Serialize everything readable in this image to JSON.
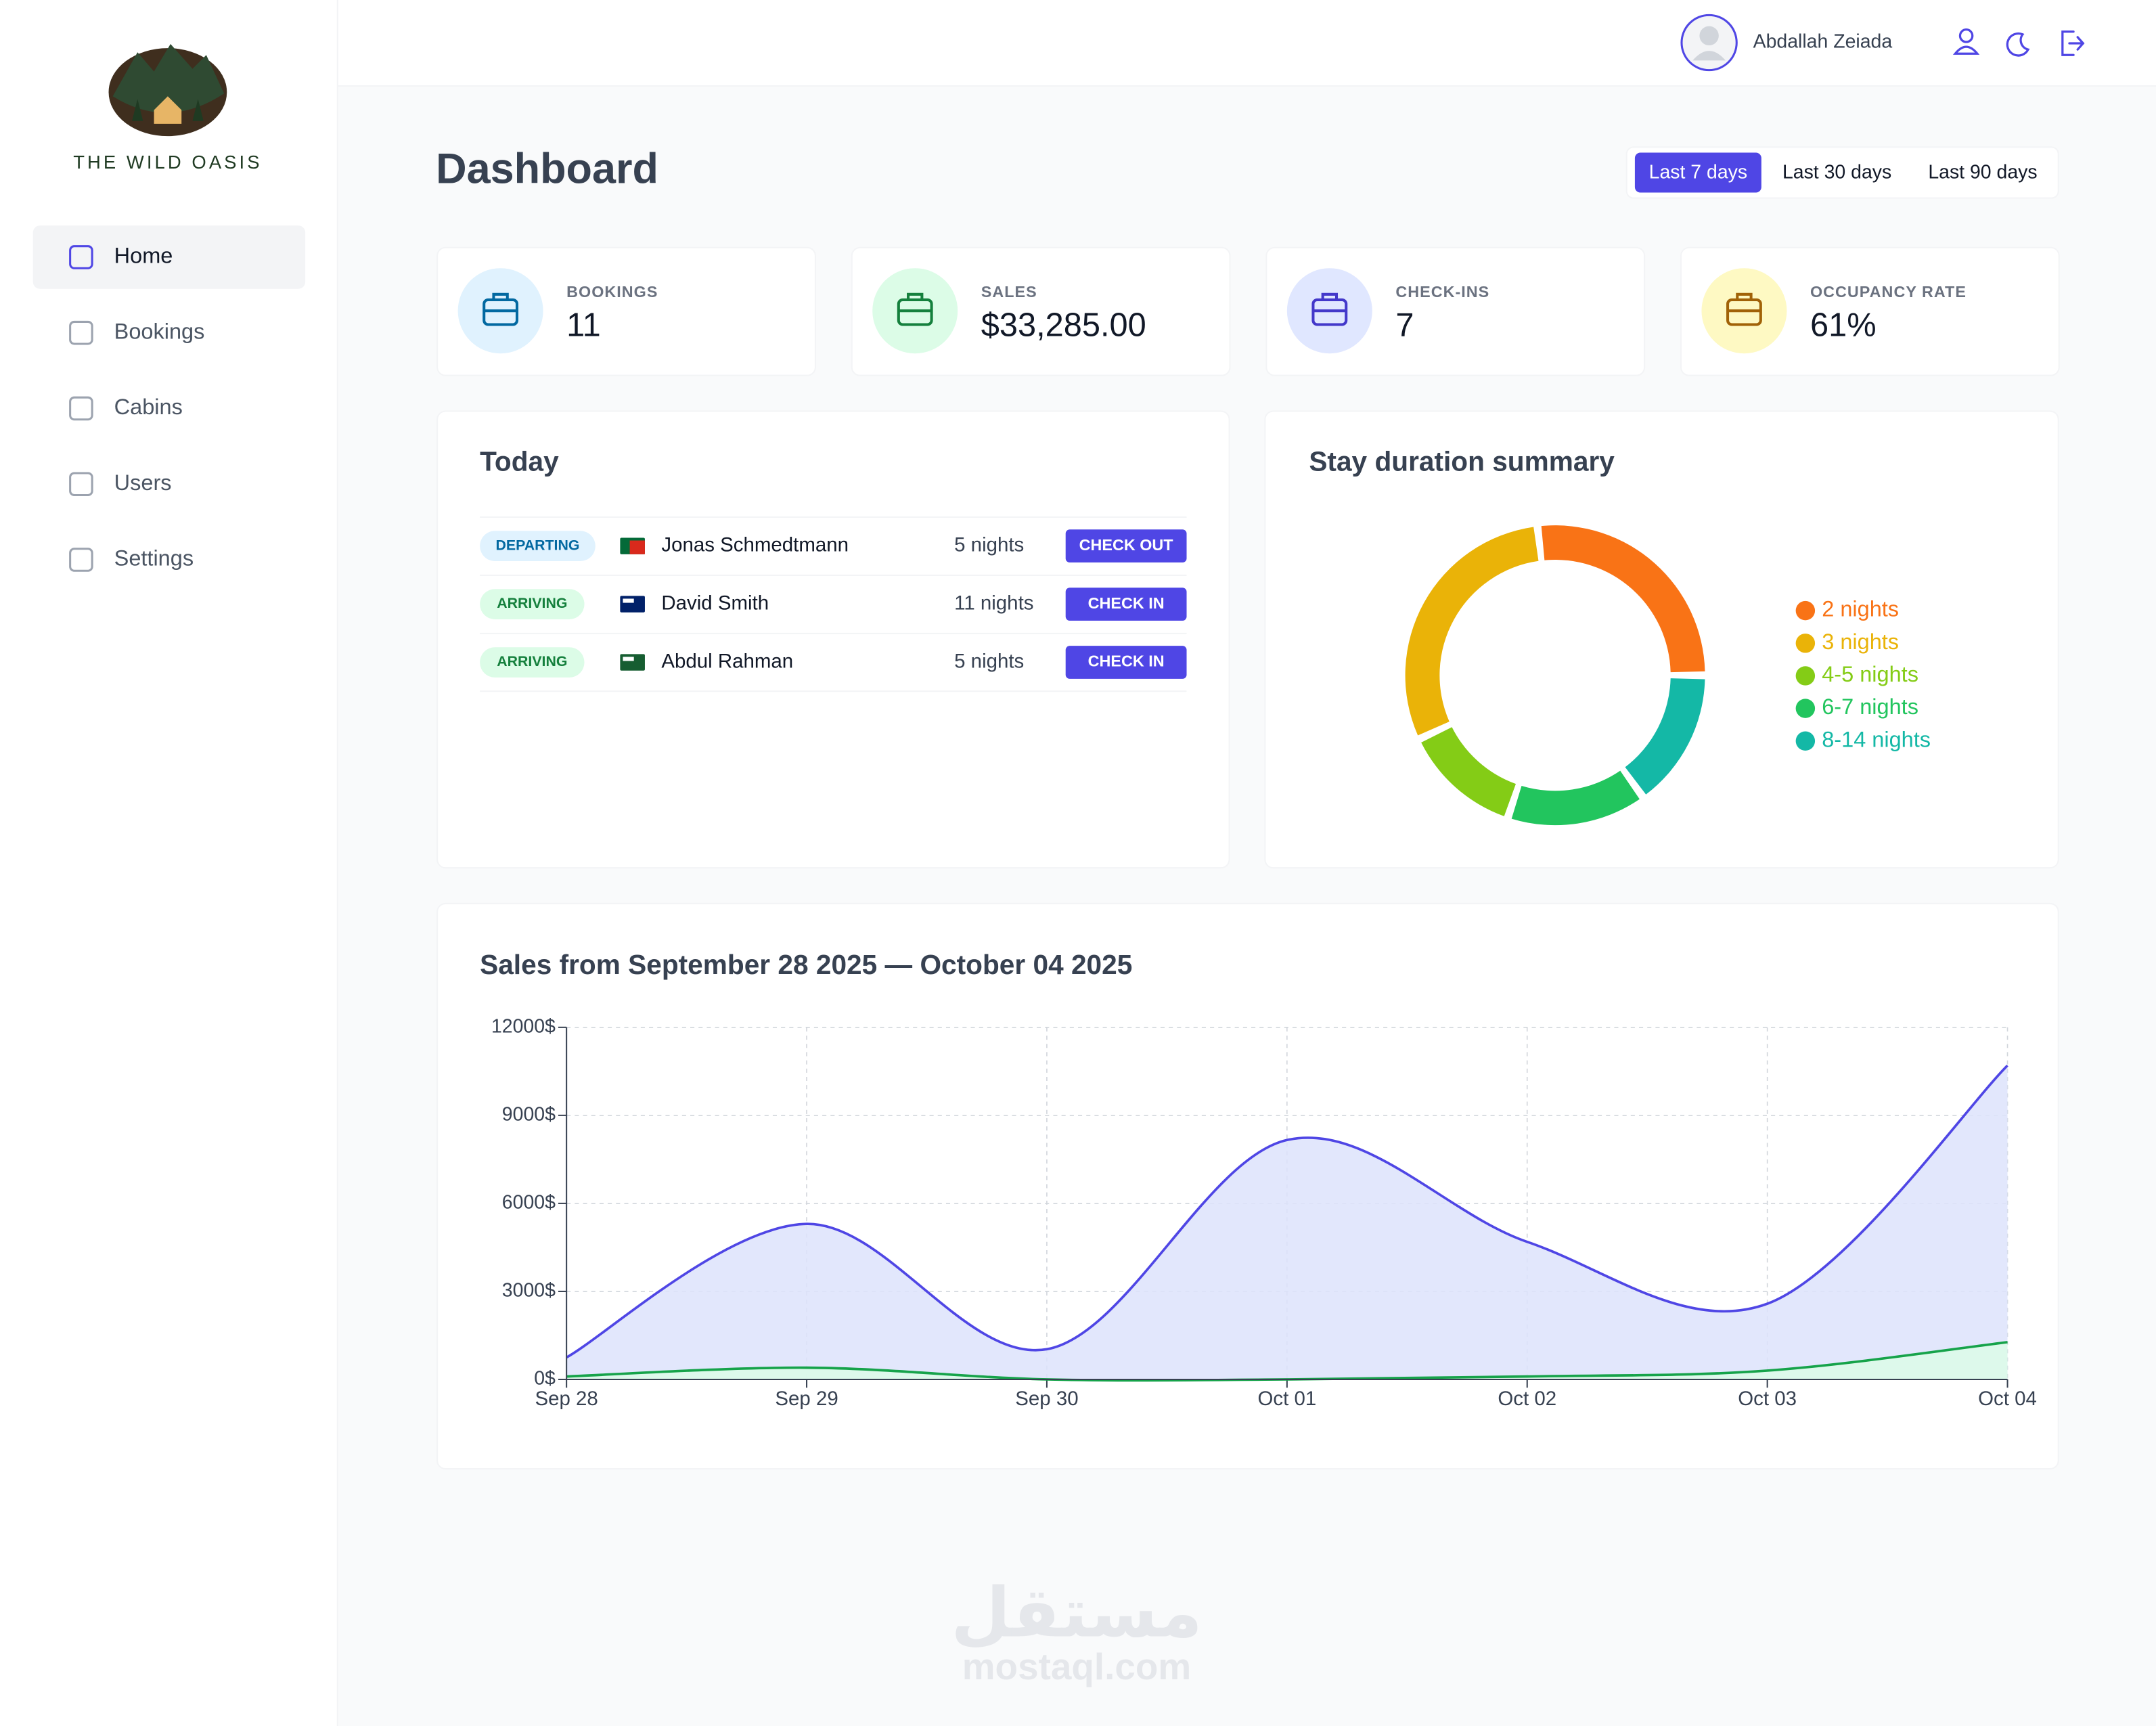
{
  "sidebar": {
    "brand": "THE WILD OASIS",
    "nav": [
      "Home",
      "Bookings",
      "Cabins",
      "Users",
      "Settings"
    ],
    "active": 0
  },
  "header": {
    "user": "Abdallah Zeiada"
  },
  "page": {
    "title": "Dashboard",
    "filters": [
      "Last 7 days",
      "Last 30 days",
      "Last 90 days"
    ],
    "active_filter": 0
  },
  "stats": [
    {
      "label": "BOOKINGS",
      "value": "11",
      "color": "#0369a1",
      "bg": "#e0f2fe"
    },
    {
      "label": "SALES",
      "value": "$33,285.00",
      "color": "#15803d",
      "bg": "#dcfce7"
    },
    {
      "label": "CHECK-INS",
      "value": "7",
      "color": "#4338ca",
      "bg": "#e0e7ff"
    },
    {
      "label": "OCCUPANCY RATE",
      "value": "61%",
      "color": "#a16207",
      "bg": "#fef9c3"
    }
  ],
  "today": {
    "title": "Today",
    "rows": [
      {
        "status": "DEPARTING",
        "status_color": "#0369a1",
        "status_bg": "#e0f2fe",
        "name": "Jonas Schmedtmann",
        "nights": "5 nights",
        "action": "CHECK OUT"
      },
      {
        "status": "ARRIVING",
        "status_color": "#15803d",
        "status_bg": "#dcfce7",
        "name": "David Smith",
        "nights": "11 nights",
        "action": "CHECK IN"
      },
      {
        "status": "ARRIVING",
        "status_color": "#15803d",
        "status_bg": "#dcfce7",
        "name": "Abdul Rahman",
        "nights": "5 nights",
        "action": "CHECK IN"
      }
    ]
  },
  "chart_data": [
    {
      "type": "pie",
      "donut": true,
      "title": "Stay duration summary",
      "categories": [
        "2 nights",
        "3 nights",
        "4-5 nights",
        "6-7 nights",
        "8-14 nights"
      ],
      "values": [
        25,
        28,
        12,
        14,
        14
      ],
      "colors": [
        "#f97316",
        "#eab308",
        "#84cc16",
        "#22c55e",
        "#14b8a6"
      ],
      "legend": "right"
    },
    {
      "type": "area",
      "title": "Sales from September 28 2025 — October 04 2025",
      "categories": [
        "Sep 28",
        "Sep 29",
        "Sep 30",
        "Oct 01",
        "Oct 02",
        "Oct 03",
        "Oct 04"
      ],
      "series": [
        {
          "color": "#4f46e5",
          "fill": "#dde3fc",
          "values": [
            750,
            5300,
            1030,
            8160,
            4690,
            2580,
            10700
          ]
        },
        {
          "color": "#16a34a",
          "fill": "#dcfce7",
          "values": [
            100,
            400,
            0,
            0,
            100,
            300,
            1270
          ]
        }
      ],
      "ylim": [
        0,
        12000
      ],
      "yticks": [
        {
          "value": 0,
          "label": "0$"
        },
        {
          "value": 3000,
          "label": "3000$"
        },
        {
          "value": 6000,
          "label": "6000$"
        },
        {
          "value": 9000,
          "label": "9000$"
        },
        {
          "value": 12000,
          "label": "12000$"
        }
      ],
      "grid": true
    }
  ],
  "watermark": {
    "arabic": "مستقل",
    "latin": "mostaql.com"
  }
}
